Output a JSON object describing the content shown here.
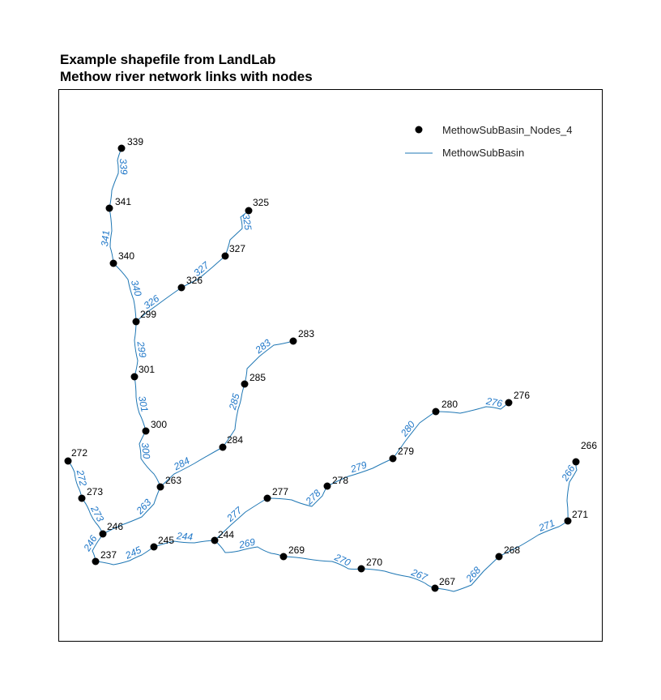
{
  "title": {
    "line1": "Example shapefile from LandLab",
    "line2": "Methow river network links with nodes"
  },
  "legend": {
    "nodes_label": "MethowSubBasin_Nodes_4",
    "links_label": "MethowSubBasin",
    "placement": "top-right"
  },
  "colors": {
    "link": "#1f77b4",
    "link_label": "#1f77c8",
    "node": "#000000"
  },
  "nodes": [
    "339",
    "341",
    "340",
    "325",
    "327",
    "326",
    "299",
    "301",
    "300",
    "283",
    "285",
    "284",
    "263",
    "272",
    "273",
    "246",
    "237",
    "245",
    "244",
    "277",
    "278",
    "279",
    "280",
    "276",
    "269",
    "270",
    "267",
    "268",
    "271",
    "266"
  ],
  "links": [
    "339",
    "341",
    "340",
    "325",
    "327",
    "326",
    "299",
    "301",
    "300",
    "283",
    "285",
    "284",
    "263",
    "272",
    "273",
    "246",
    "245",
    "244",
    "277",
    "278",
    "279",
    "280",
    "276",
    "269",
    "270",
    "267",
    "268",
    "271",
    "266"
  ]
}
